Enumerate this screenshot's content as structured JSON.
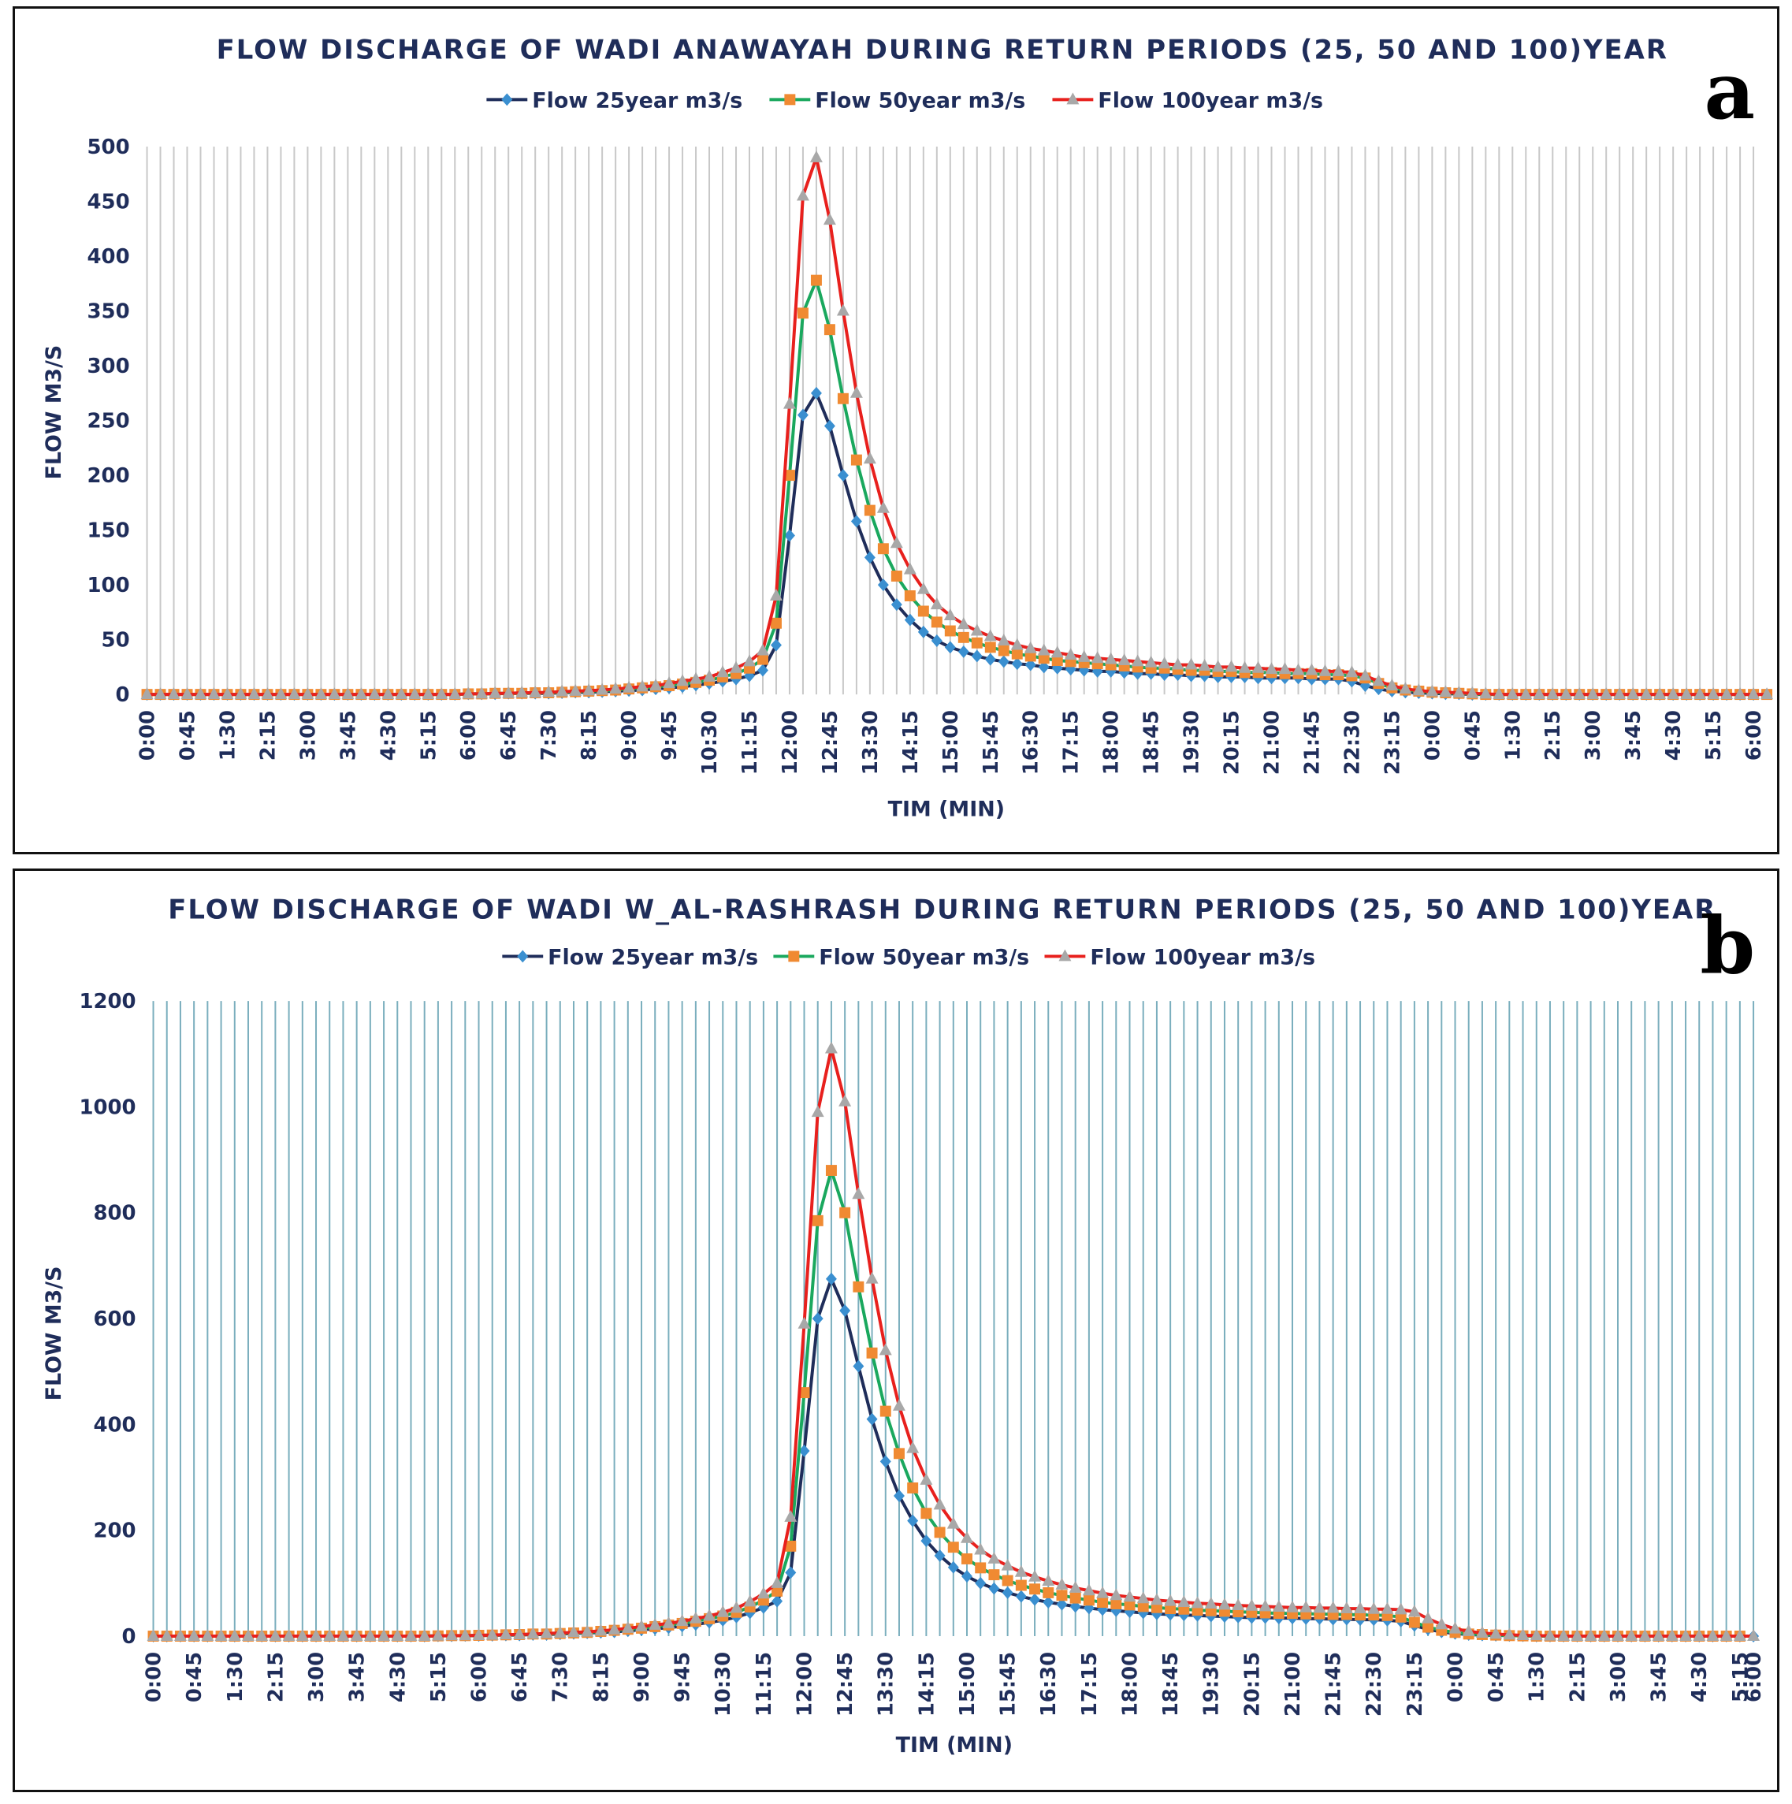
{
  "chart_data": [
    {
      "panel_label": "a",
      "type": "line",
      "title": "FLOW DISCHARGE OF WADI ANAWAYAH DURING RETURN PERIODS (25, 50 AND 100)YEAR",
      "xlabel": "TIM (MIN)",
      "ylabel": "FLOW M3/S",
      "ylim": [
        0,
        500
      ],
      "yticks": [
        0,
        50,
        100,
        150,
        200,
        250,
        300,
        350,
        400,
        450,
        500
      ],
      "grid": "vertical",
      "grid_color": "#c8c8c8",
      "legend_position": "top",
      "x_tick_labels": [
        "0:00",
        "0:45",
        "1:30",
        "2:15",
        "3:00",
        "3:45",
        "4:30",
        "5:15",
        "6:00",
        "6:45",
        "7:30",
        "8:15",
        "9:00",
        "9:45",
        "10:30",
        "11:15",
        "12:00",
        "12:45",
        "13:30",
        "14:15",
        "15:00",
        "15:45",
        "16:30",
        "17:15",
        "18:00",
        "18:45",
        "19:30",
        "20:15",
        "21:00",
        "21:45",
        "22:30",
        "23:15",
        "0:00",
        "0:45",
        "1:30",
        "2:15",
        "3:00",
        "3:45",
        "4:30",
        "5:15",
        "6:00"
      ],
      "x_tick_every": 3,
      "series": [
        {
          "name": "Flow 25year m3/s",
          "line_color": "#1f2d5a",
          "marker": "diamond",
          "marker_color": "#3a8fd0",
          "values": [
            0,
            0,
            0,
            0,
            0,
            0,
            0,
            0,
            0,
            0,
            0,
            0,
            0,
            0,
            0,
            0,
            0,
            0,
            0,
            0,
            0,
            0,
            0,
            0,
            0.5,
            0.5,
            0.5,
            1,
            1,
            1,
            1,
            1.5,
            2,
            2,
            2.5,
            3,
            3.5,
            4,
            5,
            6,
            7,
            8.5,
            10,
            12,
            14,
            17,
            22,
            45,
            145,
            255,
            275,
            245,
            200,
            158,
            125,
            100,
            82,
            68,
            57,
            49,
            43,
            39,
            35,
            32,
            30,
            28,
            27,
            25,
            24,
            23,
            22,
            21,
            21,
            20,
            19,
            19,
            18,
            18,
            17,
            17,
            16,
            16,
            16,
            15,
            15,
            15,
            15,
            14,
            14,
            14,
            12,
            8,
            5,
            3,
            2,
            1.5,
            1,
            0.5,
            0.5,
            0,
            0,
            0,
            0,
            0,
            0,
            0,
            0,
            0,
            0,
            0,
            0,
            0,
            0,
            0,
            0,
            0,
            0,
            0,
            0,
            0,
            0
          ]
        },
        {
          "name": "Flow 50year m3/s",
          "line_color": "#1aa85e",
          "marker": "square",
          "marker_color": "#f08a32",
          "values": [
            0,
            0,
            0,
            0,
            0,
            0,
            0,
            0,
            0,
            0,
            0,
            0,
            0,
            0,
            0,
            0,
            0,
            0,
            0,
            0,
            0,
            0,
            0,
            0,
            0.5,
            0.5,
            1,
            1,
            1,
            1.5,
            1.5,
            2,
            2.5,
            3,
            3.5,
            4,
            5,
            6,
            7,
            8,
            9.5,
            11,
            13,
            16,
            19,
            24,
            32,
            65,
            200,
            348,
            378,
            333,
            270,
            214,
            168,
            133,
            108,
            90,
            76,
            66,
            58,
            52,
            47,
            43,
            40,
            37,
            35,
            33,
            31,
            30,
            29,
            28,
            27,
            26,
            25,
            24,
            24,
            23,
            22,
            22,
            21,
            21,
            20,
            20,
            20,
            19,
            19,
            19,
            18,
            18,
            17,
            15,
            10,
            6,
            4,
            3,
            2,
            1.5,
            1,
            0.5,
            0,
            0,
            0,
            0,
            0,
            0,
            0,
            0,
            0,
            0,
            0,
            0,
            0,
            0,
            0,
            0,
            0,
            0,
            0,
            0,
            0,
            0
          ]
        },
        {
          "name": "Flow 100year m3/s",
          "line_color": "#e8201d",
          "marker": "triangle",
          "marker_color": "#a8a8a8",
          "values": [
            0,
            0,
            0,
            0,
            0,
            0,
            0,
            0,
            0,
            0,
            0,
            0,
            0,
            0,
            0,
            0,
            0,
            0,
            0,
            0,
            0,
            0,
            0,
            0,
            0.5,
            0.5,
            1,
            1,
            1.5,
            1.5,
            2,
            2.5,
            3,
            3.5,
            4,
            5,
            6,
            7,
            8,
            10,
            12,
            14,
            16,
            20,
            24,
            30,
            40,
            90,
            265,
            455,
            490,
            433,
            350,
            275,
            215,
            170,
            138,
            114,
            96,
            82,
            72,
            64,
            58,
            53,
            49,
            45,
            42,
            40,
            38,
            36,
            34,
            33,
            32,
            31,
            30,
            29,
            28,
            27,
            27,
            26,
            25,
            25,
            24,
            24,
            23,
            23,
            22,
            22,
            21,
            21,
            20,
            17,
            12,
            8,
            5,
            3.5,
            2.5,
            2,
            1.5,
            1,
            0.5,
            0,
            0,
            0,
            0,
            0,
            0,
            0,
            0,
            0,
            0,
            0,
            0,
            0,
            0,
            0,
            0,
            0,
            0,
            0,
            0,
            0
          ]
        }
      ]
    },
    {
      "panel_label": "b",
      "type": "line",
      "title": "FLOW DISCHARGE OF WADI W_AL-RASHRASH DURING RETURN PERIODS (25, 50 AND 100)YEAR",
      "xlabel": "TIM (MIN)",
      "ylabel": "FLOW M3/S",
      "ylim": [
        0,
        1200
      ],
      "yticks": [
        0,
        200,
        400,
        600,
        800,
        1000,
        1200
      ],
      "grid": "vertical",
      "grid_color": "#7aaebd",
      "legend_position": "top",
      "x_tick_labels": [
        "0:00",
        "0:45",
        "1:30",
        "2:15",
        "3:00",
        "3:45",
        "4:30",
        "5:15",
        "6:00",
        "6:45",
        "7:30",
        "8:15",
        "9:00",
        "9:45",
        "10:30",
        "11:15",
        "12:00",
        "12:45",
        "13:30",
        "14:15",
        "15:00",
        "15:45",
        "16:30",
        "17:15",
        "18:00",
        "18:45",
        "19:30",
        "20:15",
        "21:00",
        "21:45",
        "22:30",
        "23:15",
        "0:00",
        "0:45",
        "1:30",
        "2:15",
        "3:00",
        "3:45",
        "4:30",
        "5:15",
        "6:00"
      ],
      "x_tick_every": 3,
      "series": [
        {
          "name": "Flow 25year m3/s",
          "line_color": "#1f2d5a",
          "marker": "diamond",
          "marker_color": "#3a8fd0",
          "values": [
            0,
            0,
            0,
            0,
            0,
            0,
            0,
            0,
            0,
            0,
            0,
            0,
            0,
            0,
            0,
            0,
            0,
            0,
            0,
            0,
            0,
            0.5,
            0.5,
            1,
            1,
            1.5,
            2,
            2,
            3,
            3,
            4,
            5,
            6,
            7,
            8,
            10,
            12,
            14,
            16,
            19,
            22,
            26,
            30,
            36,
            44,
            54,
            66,
            120,
            350,
            600,
            675,
            615,
            510,
            410,
            330,
            265,
            218,
            180,
            152,
            130,
            113,
            100,
            90,
            82,
            75,
            69,
            64,
            60,
            56,
            53,
            50,
            48,
            46,
            44,
            42,
            41,
            40,
            39,
            38,
            37,
            36,
            35,
            35,
            34,
            34,
            33,
            33,
            32,
            32,
            31,
            31,
            30,
            28,
            20,
            13,
            8,
            5,
            3,
            2,
            1.5,
            1,
            0.5,
            0,
            0,
            0,
            0,
            0,
            0,
            0,
            0,
            0,
            0,
            0,
            0,
            0,
            0,
            0,
            0,
            0
          ]
        },
        {
          "name": "Flow 50year m3/s",
          "line_color": "#1aa85e",
          "marker": "square",
          "marker_color": "#f08a32",
          "values": [
            0,
            0,
            0,
            0,
            0,
            0,
            0,
            0,
            0,
            0,
            0,
            0,
            0,
            0,
            0,
            0,
            0,
            0,
            0,
            0,
            0,
            0.5,
            1,
            1,
            1.5,
            2,
            2.5,
            3,
            4,
            4,
            5,
            6,
            7,
            9,
            11,
            13,
            15,
            18,
            21,
            24,
            28,
            33,
            38,
            45,
            55,
            68,
            85,
            170,
            460,
            785,
            880,
            800,
            660,
            535,
            425,
            345,
            280,
            232,
            196,
            168,
            146,
            129,
            116,
            105,
            96,
            89,
            82,
            77,
            72,
            68,
            64,
            61,
            59,
            56,
            54,
            52,
            51,
            49,
            48,
            47,
            46,
            45,
            44,
            43,
            43,
            42,
            42,
            41,
            41,
            40,
            40,
            39,
            36,
            26,
            17,
            11,
            7,
            4,
            3,
            2,
            1,
            0.5,
            0,
            0,
            0,
            0,
            0,
            0,
            0,
            0,
            0,
            0,
            0,
            0,
            0,
            0,
            0,
            0
          ]
        },
        {
          "name": "Flow 100year m3/s",
          "line_color": "#e8201d",
          "marker": "triangle",
          "marker_color": "#a8a8a8",
          "values": [
            0,
            0,
            0,
            0,
            0,
            0,
            0,
            0,
            0,
            0,
            0,
            0,
            0,
            0,
            0,
            0,
            0,
            0,
            0,
            0,
            0,
            0.5,
            1,
            1,
            1.5,
            2,
            3,
            3,
            4,
            5,
            6,
            7,
            8,
            10,
            12,
            15,
            18,
            21,
            24,
            28,
            33,
            38,
            45,
            53,
            65,
            80,
            100,
            225,
            590,
            990,
            1110,
            1010,
            835,
            675,
            540,
            435,
            355,
            295,
            248,
            212,
            185,
            163,
            146,
            133,
            121,
            112,
            104,
            97,
            91,
            86,
            81,
            77,
            74,
            71,
            68,
            66,
            64,
            62,
            61,
            59,
            58,
            57,
            56,
            55,
            54,
            54,
            53,
            53,
            52,
            52,
            51,
            51,
            50,
            46,
            33,
            22,
            14,
            9,
            6,
            4,
            2.5,
            1.5,
            1,
            0.5,
            0,
            0,
            0,
            0,
            0,
            0,
            0,
            0,
            0,
            0,
            0,
            0,
            0,
            0,
            0
          ]
        }
      ]
    }
  ]
}
